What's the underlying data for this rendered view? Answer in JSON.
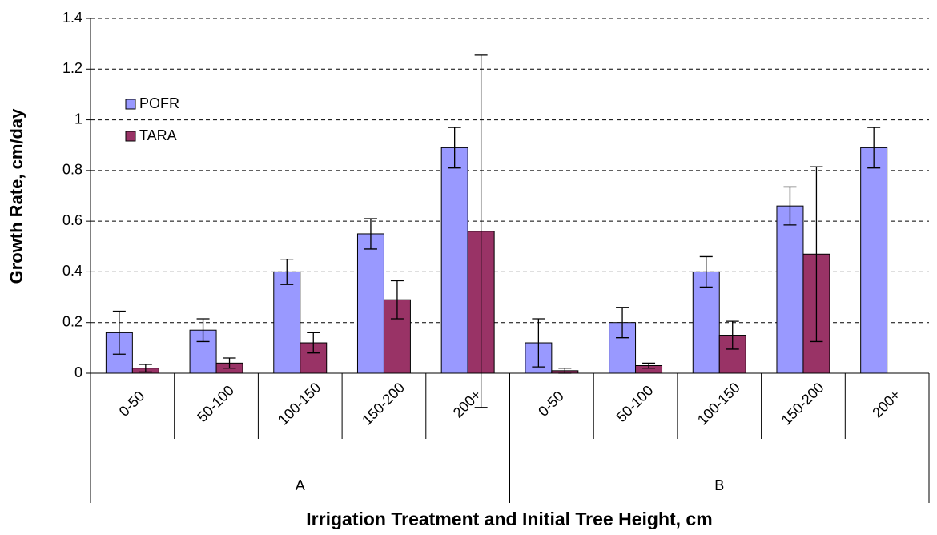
{
  "chart_data": {
    "type": "bar",
    "y_label": "Growth Rate, cm/day",
    "x_label": "Irrigation Treatment and Initial Tree Height, cm",
    "groups": [
      {
        "name": "A",
        "categories": [
          "0-50",
          "50-100",
          "100-150",
          "150-200",
          "200+"
        ]
      },
      {
        "name": "B",
        "categories": [
          "0-50",
          "50-100",
          "100-150",
          "150-200",
          "200+"
        ]
      }
    ],
    "series": [
      {
        "name": "POFR",
        "color": "#9999ff",
        "values": [
          0.16,
          0.17,
          0.4,
          0.55,
          0.89,
          0.12,
          0.2,
          0.4,
          0.66,
          0.89
        ],
        "errors": [
          0.085,
          0.045,
          0.05,
          0.06,
          0.08,
          0.095,
          0.06,
          0.06,
          0.075,
          0.08
        ]
      },
      {
        "name": "TARA",
        "color": "#993366",
        "values": [
          0.02,
          0.04,
          0.12,
          0.29,
          0.56,
          0.01,
          0.03,
          0.15,
          0.47,
          null
        ],
        "errors": [
          0.015,
          0.02,
          0.04,
          0.075,
          0.695,
          0.01,
          0.01,
          0.055,
          0.345,
          null
        ]
      }
    ],
    "ylim": [
      0,
      1.4
    ],
    "yticks": [
      0,
      0.2,
      0.4,
      0.6,
      0.8,
      1,
      1.2,
      1.4
    ],
    "grid": true,
    "legend": "upper left"
  }
}
